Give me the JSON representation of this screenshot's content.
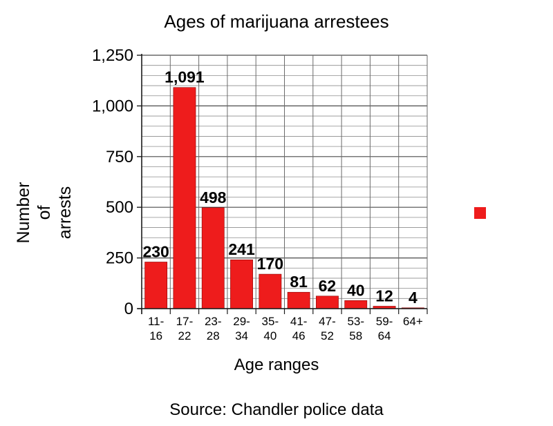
{
  "chart_data": {
    "type": "bar",
    "title": "Ages of marijuana arrestees",
    "xlabel": "Age ranges",
    "ylabel_lines": [
      "Number",
      "of",
      "arrests"
    ],
    "source": "Source: Chandler police data",
    "categories": [
      [
        "11-",
        "16"
      ],
      [
        "17-",
        "22"
      ],
      [
        "23-",
        "28"
      ],
      [
        "29-",
        "34"
      ],
      [
        "35-",
        "40"
      ],
      [
        "41-",
        "46"
      ],
      [
        "47-",
        "52"
      ],
      [
        "53-",
        "58"
      ],
      [
        "59-",
        "64"
      ],
      [
        "64+",
        ""
      ]
    ],
    "series": [
      {
        "color": "#ee1c1c",
        "values": [
          230,
          1091,
          498,
          241,
          170,
          81,
          62,
          40,
          12,
          4
        ],
        "labels": [
          "230",
          "1,091",
          "498",
          "241",
          "170",
          "81",
          "62",
          "40",
          "12",
          "4"
        ]
      }
    ],
    "ylim": [
      0,
      1250
    ],
    "yticks": [
      {
        "value": 0,
        "label": "0"
      },
      {
        "value": 250,
        "label": "250"
      },
      {
        "value": 500,
        "label": "500"
      },
      {
        "value": 750,
        "label": "750"
      },
      {
        "value": 1000,
        "label": "1,000"
      },
      {
        "value": 1250,
        "label": "1,250"
      }
    ],
    "grid": true,
    "legend_position": "right",
    "legend_marker_color": "#ee1c1c"
  }
}
